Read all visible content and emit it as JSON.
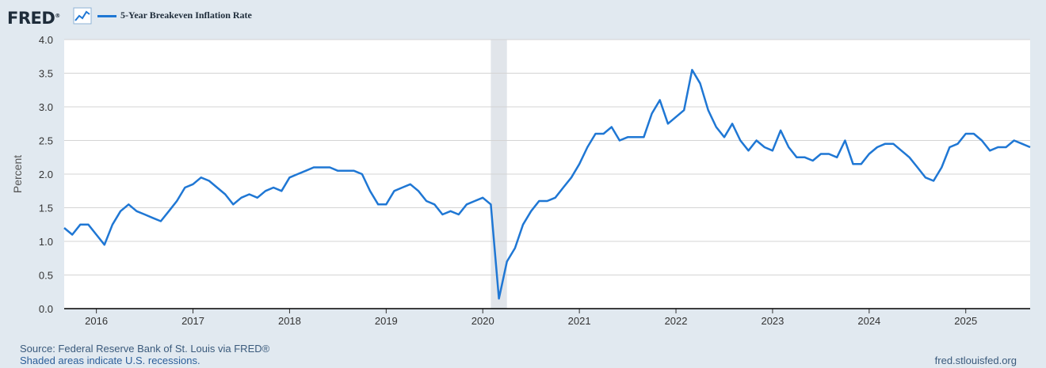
{
  "header": {
    "logo_text": "FRED",
    "logo_mark": "®",
    "legend_label": "5-Year Breakeven Inflation Rate",
    "series_color": "#1f77d4"
  },
  "footer": {
    "source": "Source: Federal Reserve Bank of St. Louis via FRED®",
    "note": "Shaded areas indicate U.S. recessions.",
    "site": "fred.stlouisfed.org"
  },
  "chart_data": {
    "type": "line",
    "ylabel": "Percent",
    "ylim": [
      0.0,
      4.0
    ],
    "yticks": [
      "0.0",
      "0.5",
      "1.0",
      "1.5",
      "2.0",
      "2.5",
      "3.0",
      "3.5",
      "4.0"
    ],
    "xlim": [
      "2015-09",
      "2025-09"
    ],
    "xticks": [
      "2016",
      "2017",
      "2018",
      "2019",
      "2020",
      "2021",
      "2022",
      "2023",
      "2024",
      "2025"
    ],
    "grid": true,
    "recessions": [
      {
        "start": "2020-02",
        "end": "2020-04"
      }
    ],
    "series": [
      {
        "name": "5-Year Breakeven Inflation Rate",
        "color": "#1f77d4",
        "x": [
          "2015-09",
          "2015-10",
          "2015-11",
          "2015-12",
          "2016-01",
          "2016-02",
          "2016-03",
          "2016-04",
          "2016-05",
          "2016-06",
          "2016-07",
          "2016-08",
          "2016-09",
          "2016-10",
          "2016-11",
          "2016-12",
          "2017-01",
          "2017-02",
          "2017-03",
          "2017-04",
          "2017-05",
          "2017-06",
          "2017-07",
          "2017-08",
          "2017-09",
          "2017-10",
          "2017-11",
          "2017-12",
          "2018-01",
          "2018-02",
          "2018-03",
          "2018-04",
          "2018-05",
          "2018-06",
          "2018-07",
          "2018-08",
          "2018-09",
          "2018-10",
          "2018-11",
          "2018-12",
          "2019-01",
          "2019-02",
          "2019-03",
          "2019-04",
          "2019-05",
          "2019-06",
          "2019-07",
          "2019-08",
          "2019-09",
          "2019-10",
          "2019-11",
          "2019-12",
          "2020-01",
          "2020-02",
          "2020-03",
          "2020-04",
          "2020-05",
          "2020-06",
          "2020-07",
          "2020-08",
          "2020-09",
          "2020-10",
          "2020-11",
          "2020-12",
          "2021-01",
          "2021-02",
          "2021-03",
          "2021-04",
          "2021-05",
          "2021-06",
          "2021-07",
          "2021-08",
          "2021-09",
          "2021-10",
          "2021-11",
          "2021-12",
          "2022-01",
          "2022-02",
          "2022-03",
          "2022-04",
          "2022-05",
          "2022-06",
          "2022-07",
          "2022-08",
          "2022-09",
          "2022-10",
          "2022-11",
          "2022-12",
          "2023-01",
          "2023-02",
          "2023-03",
          "2023-04",
          "2023-05",
          "2023-06",
          "2023-07",
          "2023-08",
          "2023-09",
          "2023-10",
          "2023-11",
          "2023-12",
          "2024-01",
          "2024-02",
          "2024-03",
          "2024-04",
          "2024-05",
          "2024-06",
          "2024-07",
          "2024-08",
          "2024-09",
          "2024-10",
          "2024-11",
          "2024-12",
          "2025-01",
          "2025-02",
          "2025-03",
          "2025-04",
          "2025-05",
          "2025-06",
          "2025-07",
          "2025-08",
          "2025-09"
        ],
        "values": [
          1.2,
          1.1,
          1.25,
          1.25,
          1.1,
          0.95,
          1.25,
          1.45,
          1.55,
          1.45,
          1.4,
          1.35,
          1.3,
          1.45,
          1.6,
          1.8,
          1.85,
          1.95,
          1.9,
          1.8,
          1.7,
          1.55,
          1.65,
          1.7,
          1.65,
          1.75,
          1.8,
          1.75,
          1.95,
          2.0,
          2.05,
          2.1,
          2.1,
          2.1,
          2.05,
          2.05,
          2.05,
          2.0,
          1.75,
          1.55,
          1.55,
          1.75,
          1.8,
          1.85,
          1.75,
          1.6,
          1.55,
          1.4,
          1.45,
          1.4,
          1.55,
          1.6,
          1.65,
          1.55,
          0.15,
          0.7,
          0.9,
          1.25,
          1.45,
          1.6,
          1.6,
          1.65,
          1.8,
          1.95,
          2.15,
          2.4,
          2.6,
          2.6,
          2.7,
          2.5,
          2.55,
          2.55,
          2.55,
          2.9,
          3.1,
          2.75,
          2.85,
          2.95,
          3.55,
          3.35,
          2.95,
          2.7,
          2.55,
          2.75,
          2.5,
          2.35,
          2.5,
          2.4,
          2.35,
          2.65,
          2.4,
          2.25,
          2.25,
          2.2,
          2.3,
          2.3,
          2.25,
          2.5,
          2.15,
          2.15,
          2.3,
          2.4,
          2.45,
          2.45,
          2.35,
          2.25,
          2.1,
          1.95,
          1.9,
          2.1,
          2.4,
          2.45,
          2.6,
          2.6,
          2.5,
          2.35,
          2.4,
          2.4,
          2.5,
          2.45,
          2.4
        ]
      }
    ]
  }
}
